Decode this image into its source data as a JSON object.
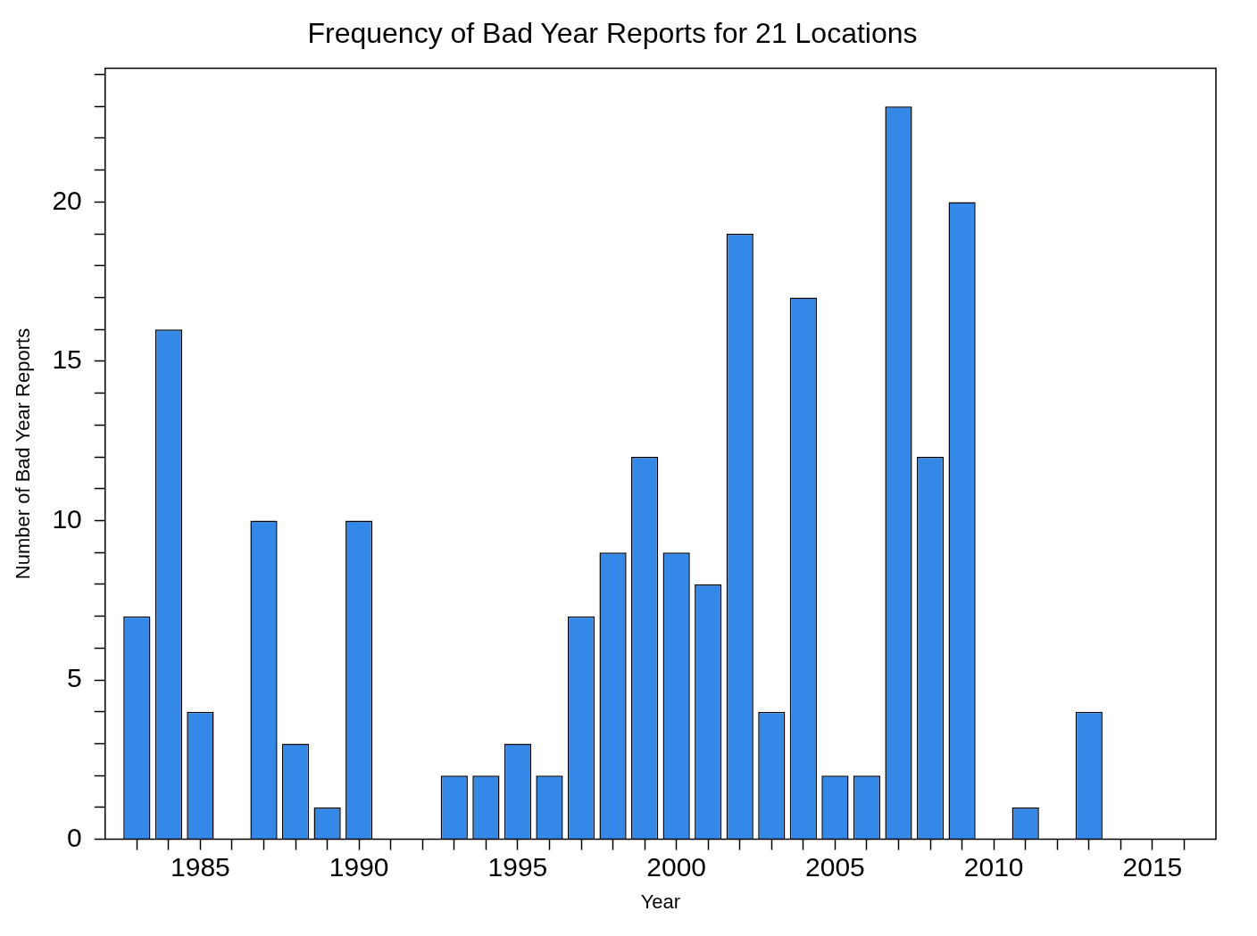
{
  "chart_data": {
    "type": "bar",
    "title": "Frequency of Bad Year Reports for 21 Locations",
    "xlabel": "Year",
    "ylabel": "Number of Bad Year Reports",
    "x": [
      1983,
      1984,
      1985,
      1987,
      1988,
      1989,
      1990,
      1993,
      1994,
      1995,
      1996,
      1997,
      1998,
      1999,
      2000,
      2001,
      2002,
      2003,
      2004,
      2005,
      2006,
      2007,
      2008,
      2009,
      2011,
      2013
    ],
    "values": [
      7,
      16,
      4,
      10,
      3,
      1,
      10,
      2,
      2,
      3,
      2,
      7,
      9,
      12,
      9,
      8,
      19,
      4,
      17,
      2,
      2,
      23,
      12,
      20,
      1,
      4
    ],
    "color": "#3388e8",
    "xlim": [
      1982,
      2017
    ],
    "xticks": [
      {
        "value": 1983,
        "label": null
      },
      {
        "value": 1984,
        "label": null
      },
      1985,
      {
        "value": 1986,
        "label": null
      },
      {
        "value": 1987,
        "label": null
      },
      {
        "value": 1988,
        "label": null
      },
      {
        "value": 1989,
        "label": null
      },
      1990,
      {
        "value": 1991,
        "label": null
      },
      {
        "value": 1992,
        "label": null
      },
      {
        "value": 1993,
        "label": null
      },
      {
        "value": 1994,
        "label": null
      },
      1995,
      {
        "value": 1996,
        "label": null
      },
      {
        "value": 1997,
        "label": null
      },
      {
        "value": 1998,
        "label": null
      },
      {
        "value": 1999,
        "label": null
      },
      2000,
      {
        "value": 2001,
        "label": null
      },
      {
        "value": 2002,
        "label": null
      },
      {
        "value": 2003,
        "label": null
      },
      {
        "value": 2004,
        "label": null
      },
      2005,
      {
        "value": 2006,
        "label": null
      },
      {
        "value": 2007,
        "label": null
      },
      {
        "value": 2008,
        "label": null
      },
      {
        "value": 2009,
        "label": null
      },
      2010,
      {
        "value": 2011,
        "label": null
      },
      {
        "value": 2012,
        "label": null
      },
      {
        "value": 2013,
        "label": null
      },
      {
        "value": 2014,
        "label": null
      },
      2015,
      {
        "value": 2016,
        "label": null
      }
    ],
    "ylim": [
      0,
      24.2
    ],
    "yticks": [
      0,
      {
        "value": 1,
        "label": null
      },
      {
        "value": 2,
        "label": null
      },
      {
        "value": 3,
        "label": null
      },
      {
        "value": 4,
        "label": null
      },
      5,
      {
        "value": 6,
        "label": null
      },
      {
        "value": 7,
        "label": null
      },
      {
        "value": 8,
        "label": null
      },
      {
        "value": 9,
        "label": null
      },
      10,
      {
        "value": 11,
        "label": null
      },
      {
        "value": 12,
        "label": null
      },
      {
        "value": 13,
        "label": null
      },
      {
        "value": 14,
        "label": null
      },
      15,
      {
        "value": 16,
        "label": null
      },
      {
        "value": 17,
        "label": null
      },
      {
        "value": 18,
        "label": null
      },
      {
        "value": 19,
        "label": null
      },
      20,
      {
        "value": 21,
        "label": null
      },
      {
        "value": 22,
        "label": null
      },
      {
        "value": 23,
        "label": null
      },
      {
        "value": 24,
        "label": null
      }
    ],
    "grid": false,
    "legend": false
  }
}
